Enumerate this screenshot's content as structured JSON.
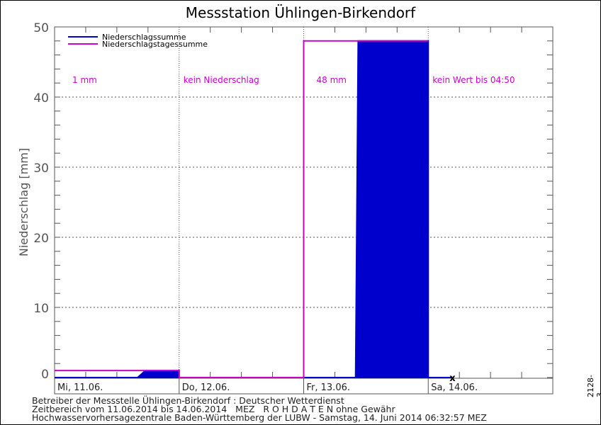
{
  "title": "Messstation Ühlingen-Birkendorf",
  "footer": {
    "line1": "Betreiber der Messstelle Ühlingen-Birkendorf : Deutscher Wetterdienst",
    "line2": "Zeitbereich vom 11.06.2014 bis 14.06.2014   MEZ   R O H D A T E N ohne Gewähr",
    "line3": "Hochwasservorhersagezentrale Baden-Württemberg der LUBW - Samstag, 14. Juni 2014 06:32:57 MEZ"
  },
  "side_code": "2128-3",
  "chart_data": {
    "type": "line",
    "title": "Messstation Ühlingen-Birkendorf",
    "ylabel": "Niederschlag [mm]",
    "ylim": [
      0,
      50
    ],
    "yticks": [
      0,
      10,
      20,
      30,
      40,
      50
    ],
    "grid": true,
    "legend_position": "top-left",
    "x_range": [
      "11.06.2014 00:00",
      "15.06.2014 00:00"
    ],
    "day_labels": [
      "Mi, 11.06.",
      "Do, 12.06.",
      "Fr, 13.06.",
      "Sa, 14.06."
    ],
    "day_annotations": [
      "1 mm",
      "kein Niederschlag",
      "48 mm",
      "kein Wert bis 04:50"
    ],
    "series": [
      {
        "name": "Niederschlagssumme",
        "color": "#0000cc",
        "points": [
          [
            "11.06. 00:00",
            0
          ],
          [
            "11.06. 16:00",
            0
          ],
          [
            "11.06. 17:30",
            1
          ],
          [
            "11.06. 24:00",
            1
          ],
          [
            "12.06. 00:00",
            0
          ],
          [
            "13.06. 10:00",
            0
          ],
          [
            "13.06. 10:30",
            48
          ],
          [
            "13.06. 24:00",
            48
          ],
          [
            "14.06. 00:00",
            0
          ],
          [
            "14.06. 04:40",
            0
          ]
        ]
      },
      {
        "name": "Niederschlagstagessumme",
        "color": "#cc00cc",
        "daily_values": [
          1,
          0,
          48
        ]
      }
    ]
  }
}
